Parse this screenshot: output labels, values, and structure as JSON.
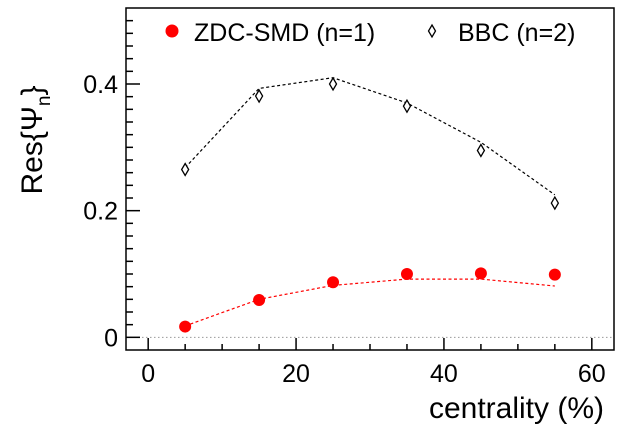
{
  "chart_data": {
    "type": "scatter",
    "xlabel": "centrality (%)",
    "ylabel_main": "Res{Ψ",
    "ylabel_sub": "n",
    "ylabel_close": "}",
    "xlim": [
      -3,
      63
    ],
    "ylim": [
      -0.02,
      0.52
    ],
    "x_ticks": [
      0,
      20,
      40,
      60
    ],
    "y_ticks": [
      0,
      0.2,
      0.4
    ],
    "x_tick_labels": [
      "0",
      "20",
      "40",
      "60"
    ],
    "y_tick_labels": [
      "0",
      "0.2",
      "0.4"
    ],
    "grid": false,
    "legend_position": "top",
    "reference_line_y": 0,
    "series": [
      {
        "name": "ZDC-SMD (n=1)",
        "marker": "filled-circle",
        "color": "#ff0000",
        "x": [
          5,
          15,
          25,
          35,
          45,
          55
        ],
        "y": [
          0.017,
          0.059,
          0.087,
          0.1,
          0.101,
          0.099
        ],
        "fit": {
          "x": [
            5,
            15,
            25,
            35,
            45,
            55
          ],
          "y": [
            0.018,
            0.06,
            0.082,
            0.092,
            0.092,
            0.081
          ]
        }
      },
      {
        "name": "BBC (n=2)",
        "marker": "open-diamond",
        "color": "#000000",
        "x": [
          5,
          15,
          25,
          35,
          45,
          55
        ],
        "y": [
          0.265,
          0.381,
          0.4,
          0.365,
          0.295,
          0.212
        ],
        "fit": {
          "x": [
            5,
            15,
            25,
            35,
            45,
            55
          ],
          "y": [
            0.268,
            0.393,
            0.41,
            0.37,
            0.308,
            0.225
          ]
        }
      }
    ]
  }
}
